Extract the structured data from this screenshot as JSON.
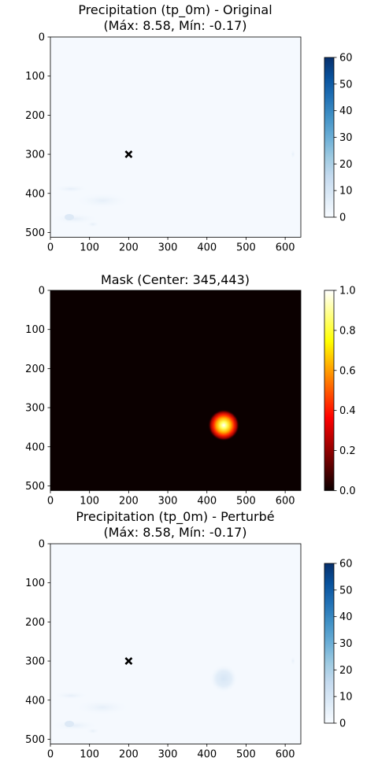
{
  "chart_data": [
    {
      "type": "heatmap",
      "title_line1": "Precipitation (tp_0m) - Original",
      "title_line2": "(Máx: 8.58, Mín: -0.17)",
      "image_width": 640,
      "image_height": 512,
      "xlim": [
        0,
        640
      ],
      "ylim": [
        512,
        0
      ],
      "x_ticks": [
        0,
        100,
        200,
        300,
        400,
        500,
        600
      ],
      "y_ticks": [
        0,
        100,
        200,
        300,
        400,
        500
      ],
      "marker": {
        "symbol": "x",
        "x": 200,
        "y": 300
      },
      "colormap": "Blues",
      "colorbar": {
        "min": 0,
        "max": 60,
        "ticks": [
          0,
          10,
          20,
          30,
          40,
          50,
          60
        ]
      },
      "stats": {
        "max": 8.58,
        "min": -0.17
      }
    },
    {
      "type": "heatmap",
      "title_line1": "Mask (Center: 345,443)",
      "title_line2": "",
      "image_width": 640,
      "image_height": 512,
      "xlim": [
        0,
        640
      ],
      "ylim": [
        512,
        0
      ],
      "x_ticks": [
        0,
        100,
        200,
        300,
        400,
        500,
        600
      ],
      "y_ticks": [
        0,
        100,
        200,
        300,
        400,
        500
      ],
      "colormap": "hot",
      "blob": {
        "center_row": 345,
        "center_col": 443,
        "peak": 1.0
      },
      "colorbar": {
        "min": 0.0,
        "max": 1.0,
        "ticks": [
          0.0,
          0.2,
          0.4,
          0.6,
          0.8,
          1.0
        ]
      }
    },
    {
      "type": "heatmap",
      "title_line1": "Precipitation (tp_0m) - Perturbé",
      "title_line2": "(Máx: 8.58, Mín: -0.17)",
      "image_width": 640,
      "image_height": 512,
      "xlim": [
        0,
        640
      ],
      "ylim": [
        512,
        0
      ],
      "x_ticks": [
        0,
        100,
        200,
        300,
        400,
        500,
        600
      ],
      "y_ticks": [
        0,
        100,
        200,
        300,
        400,
        500
      ],
      "marker": {
        "symbol": "x",
        "x": 200,
        "y": 300
      },
      "colormap": "Blues",
      "perturbation": {
        "center_row": 345,
        "center_col": 443
      },
      "colorbar": {
        "min": 0,
        "max": 60,
        "ticks": [
          0,
          10,
          20,
          30,
          40,
          50,
          60
        ]
      },
      "stats": {
        "max": 8.58,
        "min": -0.17
      }
    }
  ],
  "colors": {
    "blues_bottom": "#f7fbff",
    "blues_top": "#08306b",
    "hot_bottom": "#0b0000",
    "hot_top": "#ffffff",
    "marker": "#000000"
  }
}
